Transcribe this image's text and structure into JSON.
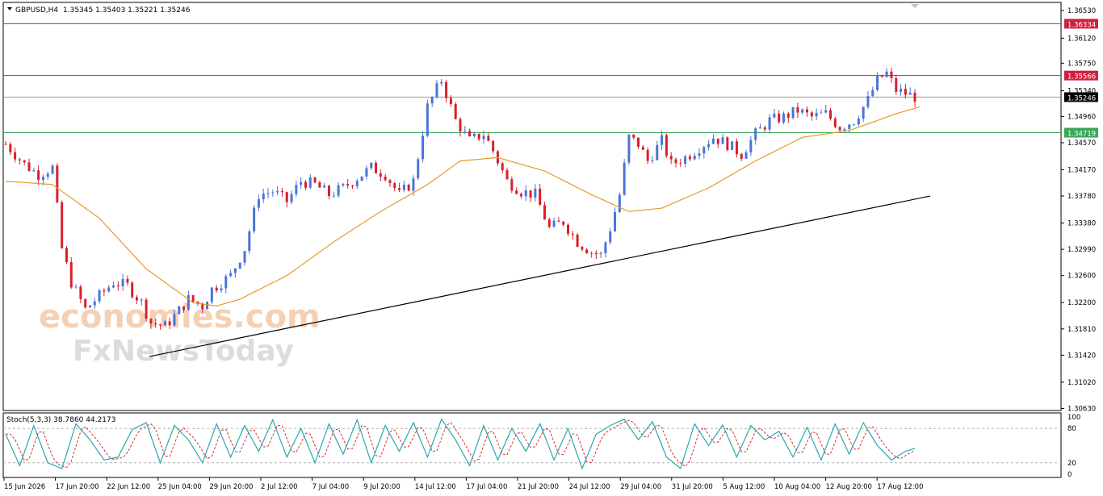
{
  "header": {
    "symbol": "GBPUSD,H4",
    "ohlc": "1.35345 1.35403 1.35221 1.35246"
  },
  "stoch": {
    "label": "Stoch(5,3,3) 38.7860 44.2173",
    "levels": [
      "100",
      "80",
      "20",
      "0"
    ]
  },
  "watermark": {
    "line1": "economies.com",
    "line2": "FxNewsToday"
  },
  "colors": {
    "bull": "#4a74d8",
    "bear": "#d8202c",
    "ma": "#e69a28",
    "trendline": "#000000",
    "resistance_line": "#d02040",
    "support_line": "#3aa65a",
    "current_line": "#9a9a9a",
    "stoch_main": "#2aa6b0",
    "stoch_signal": "#d03030"
  },
  "chart_data": {
    "type": "candlestick",
    "symbol": "GBPUSD",
    "timeframe": "H4",
    "ylim": [
      1.306,
      1.3665
    ],
    "y_ticks": [
      "1.36530",
      "1.36120",
      "1.35750",
      "1.35340",
      "1.34960",
      "1.34570",
      "1.34170",
      "1.33780",
      "1.33380",
      "1.32990",
      "1.32600",
      "1.32200",
      "1.31810",
      "1.31420",
      "1.31020",
      "1.30630"
    ],
    "x_ticks": [
      "15 Jun 2026",
      "17 Jun 20:00",
      "22 Jun 12:00",
      "25 Jun 04:00",
      "29 Jun 20:00",
      "2 Jul 12:00",
      "7 Jul 04:00",
      "9 Jul 20:00",
      "14 Jul 12:00",
      "17 Jul 04:00",
      "21 Jul 20:00",
      "24 Jul 12:00",
      "29 Jul 04:00",
      "31 Jul 20:00",
      "5 Aug 12:00",
      "10 Aug 04:00",
      "12 Aug 20:00",
      "17 Aug 12:00"
    ],
    "levels": [
      {
        "price": 1.36334,
        "label": "1.36334",
        "kind": "resistance"
      },
      {
        "price": 1.35566,
        "label": "1.35566",
        "kind": "resistance"
      },
      {
        "price": 1.35246,
        "label": "1.35246",
        "kind": "current"
      },
      {
        "price": 1.34719,
        "label": "1.34719",
        "kind": "support"
      }
    ],
    "trendline": {
      "start": [
        1,
        1.314
      ],
      "end": [
        122,
        1.3378
      ]
    },
    "close_path": [
      [
        0,
        1.3455
      ],
      [
        4,
        1.3425
      ],
      [
        7,
        1.341
      ],
      [
        10,
        1.342
      ],
      [
        12,
        1.33
      ],
      [
        14,
        1.325
      ],
      [
        17,
        1.321
      ],
      [
        20,
        1.323
      ],
      [
        23,
        1.325
      ],
      [
        26,
        1.3245
      ],
      [
        29,
        1.322
      ],
      [
        31,
        1.319
      ],
      [
        34,
        1.3185
      ],
      [
        36,
        1.32
      ],
      [
        39,
        1.3225
      ],
      [
        42,
        1.3215
      ],
      [
        44,
        1.324
      ],
      [
        46,
        1.325
      ],
      [
        48,
        1.326
      ],
      [
        51,
        1.33
      ],
      [
        54,
        1.338
      ],
      [
        57,
        1.3385
      ],
      [
        60,
        1.337
      ],
      [
        63,
        1.34
      ],
      [
        66,
        1.3395
      ],
      [
        69,
        1.338
      ],
      [
        72,
        1.339
      ],
      [
        75,
        1.3405
      ],
      [
        78,
        1.342
      ],
      [
        81,
        1.341
      ],
      [
        84,
        1.338
      ],
      [
        87,
        1.34
      ],
      [
        90,
        1.351
      ],
      [
        93,
        1.355
      ],
      [
        96,
        1.349
      ],
      [
        99,
        1.346
      ],
      [
        102,
        1.347
      ],
      [
        104,
        1.3445
      ],
      [
        107,
        1.34
      ],
      [
        110,
        1.3385
      ],
      [
        113,
        1.338
      ],
      [
        116,
        1.333
      ],
      [
        119,
        1.334
      ],
      [
        122,
        1.331
      ],
      [
        125,
        1.3295
      ],
      [
        127,
        1.329
      ],
      [
        129,
        1.333
      ],
      [
        131,
        1.338
      ],
      [
        133,
        1.3465
      ],
      [
        135,
        1.3455
      ],
      [
        137,
        1.343
      ],
      [
        140,
        1.346
      ],
      [
        142,
        1.3425
      ],
      [
        145,
        1.3435
      ],
      [
        148,
        1.345
      ],
      [
        151,
        1.3465
      ],
      [
        154,
        1.3455
      ],
      [
        157,
        1.344
      ],
      [
        160,
        1.347
      ],
      [
        163,
        1.349
      ],
      [
        166,
        1.3495
      ],
      [
        169,
        1.3505
      ],
      [
        172,
        1.3495
      ],
      [
        175,
        1.35
      ],
      [
        178,
        1.348
      ],
      [
        181,
        1.349
      ],
      [
        184,
        1.352
      ],
      [
        186,
        1.355
      ],
      [
        188,
        1.356
      ],
      [
        190,
        1.3535
      ],
      [
        192,
        1.353
      ],
      [
        194,
        1.3525
      ]
    ],
    "ma_path": [
      [
        0,
        1.34
      ],
      [
        10,
        1.3395
      ],
      [
        20,
        1.3345
      ],
      [
        30,
        1.327
      ],
      [
        40,
        1.322
      ],
      [
        45,
        1.3215
      ],
      [
        50,
        1.3225
      ],
      [
        60,
        1.326
      ],
      [
        70,
        1.331
      ],
      [
        80,
        1.3355
      ],
      [
        90,
        1.3395
      ],
      [
        97,
        1.343
      ],
      [
        105,
        1.3435
      ],
      [
        115,
        1.3415
      ],
      [
        125,
        1.338
      ],
      [
        133,
        1.3355
      ],
      [
        140,
        1.336
      ],
      [
        150,
        1.339
      ],
      [
        160,
        1.343
      ],
      [
        170,
        1.3465
      ],
      [
        180,
        1.3475
      ],
      [
        190,
        1.35
      ],
      [
        195,
        1.351
      ]
    ],
    "stoch_path": [
      [
        0,
        70
      ],
      [
        3,
        15
      ],
      [
        6,
        85
      ],
      [
        9,
        20
      ],
      [
        12,
        10
      ],
      [
        15,
        88
      ],
      [
        18,
        60
      ],
      [
        21,
        25
      ],
      [
        24,
        30
      ],
      [
        27,
        78
      ],
      [
        30,
        90
      ],
      [
        33,
        20
      ],
      [
        36,
        85
      ],
      [
        39,
        60
      ],
      [
        42,
        20
      ],
      [
        45,
        88
      ],
      [
        48,
        30
      ],
      [
        51,
        85
      ],
      [
        54,
        40
      ],
      [
        57,
        95
      ],
      [
        60,
        30
      ],
      [
        63,
        80
      ],
      [
        66,
        20
      ],
      [
        69,
        88
      ],
      [
        72,
        35
      ],
      [
        75,
        95
      ],
      [
        78,
        20
      ],
      [
        81,
        85
      ],
      [
        84,
        40
      ],
      [
        87,
        90
      ],
      [
        90,
        30
      ],
      [
        93,
        96
      ],
      [
        96,
        60
      ],
      [
        99,
        15
      ],
      [
        102,
        85
      ],
      [
        105,
        25
      ],
      [
        108,
        80
      ],
      [
        111,
        40
      ],
      [
        114,
        88
      ],
      [
        117,
        25
      ],
      [
        120,
        80
      ],
      [
        123,
        10
      ],
      [
        126,
        70
      ],
      [
        129,
        85
      ],
      [
        132,
        96
      ],
      [
        135,
        60
      ],
      [
        138,
        92
      ],
      [
        141,
        30
      ],
      [
        144,
        10
      ],
      [
        147,
        88
      ],
      [
        150,
        50
      ],
      [
        153,
        86
      ],
      [
        156,
        30
      ],
      [
        159,
        85
      ],
      [
        162,
        60
      ],
      [
        165,
        75
      ],
      [
        168,
        30
      ],
      [
        171,
        82
      ],
      [
        174,
        25
      ],
      [
        177,
        88
      ],
      [
        180,
        35
      ],
      [
        183,
        90
      ],
      [
        186,
        50
      ],
      [
        189,
        25
      ],
      [
        192,
        40
      ],
      [
        194,
        45
      ]
    ]
  }
}
